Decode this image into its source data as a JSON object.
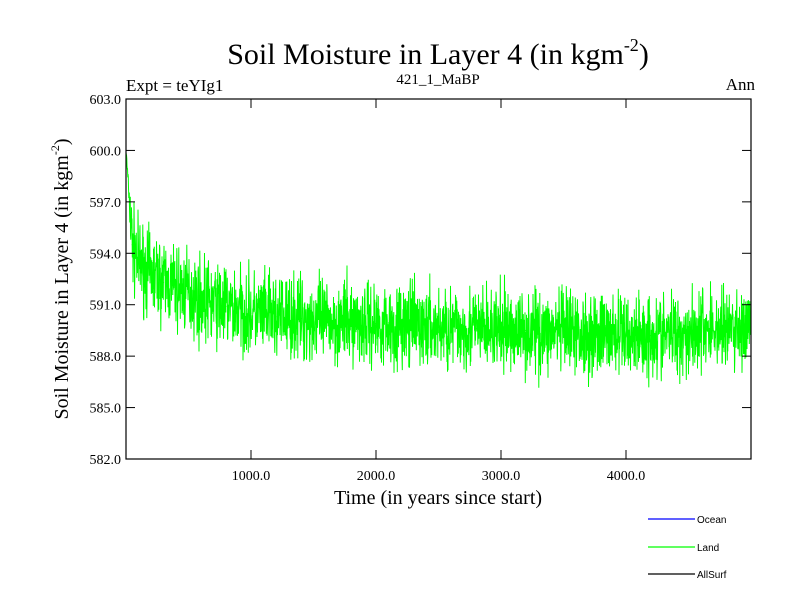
{
  "chart_data": {
    "type": "line",
    "title_main": "Soil Moisture in Layer 4 (in kgm",
    "title_sup": "-2",
    "title_close": ")",
    "subtitle_left": "Expt = teYIg1",
    "subtitle_center": "421_1_MaBP",
    "subtitle_right": "Ann",
    "xlabel": "Time (in years since start)",
    "ylabel_main": "Soil Moisture in Layer 4 (in kgm",
    "ylabel_sup": "-2",
    "ylabel_close": ")",
    "xlim": [
      0,
      5000
    ],
    "ylim": [
      582.0,
      603.0
    ],
    "xticks": [
      1000,
      2000,
      3000,
      4000
    ],
    "xtick_labels": [
      "1000.0",
      "2000.0",
      "3000.0",
      "4000.0"
    ],
    "yticks": [
      582.0,
      585.0,
      588.0,
      591.0,
      594.0,
      597.0,
      600.0,
      603.0
    ],
    "ytick_labels": [
      "582.0",
      "585.0",
      "588.0",
      "591.0",
      "594.0",
      "597.0",
      "600.0",
      "603.0"
    ],
    "grid": false,
    "legend_position": "bottom-right",
    "series": [
      {
        "name": "Ocean",
        "color": "#0000ff",
        "x": [],
        "y": []
      },
      {
        "name": "Land",
        "color": "#00ff00",
        "x": [
          0,
          50,
          100,
          200,
          300,
          400,
          500,
          600,
          700,
          800,
          900,
          1000,
          1200,
          1400,
          1600,
          1800,
          2000,
          2200,
          2400,
          2600,
          2800,
          3000,
          3200,
          3400,
          3600,
          3800,
          4000,
          4200,
          4400,
          4600,
          4800,
          5000
        ],
        "y": [
          600.0,
          594.5,
          593.5,
          592.8,
          592.3,
          592.0,
          591.7,
          591.3,
          591.1,
          590.9,
          590.7,
          590.5,
          590.3,
          590.2,
          590.0,
          590.0,
          589.9,
          589.8,
          589.7,
          589.6,
          589.6,
          589.5,
          589.5,
          589.4,
          589.3,
          589.3,
          589.2,
          589.2,
          589.3,
          589.5,
          589.6,
          589.5
        ]
      },
      {
        "name": "AllSurf",
        "color": "#000000",
        "x": [],
        "y": []
      }
    ]
  }
}
